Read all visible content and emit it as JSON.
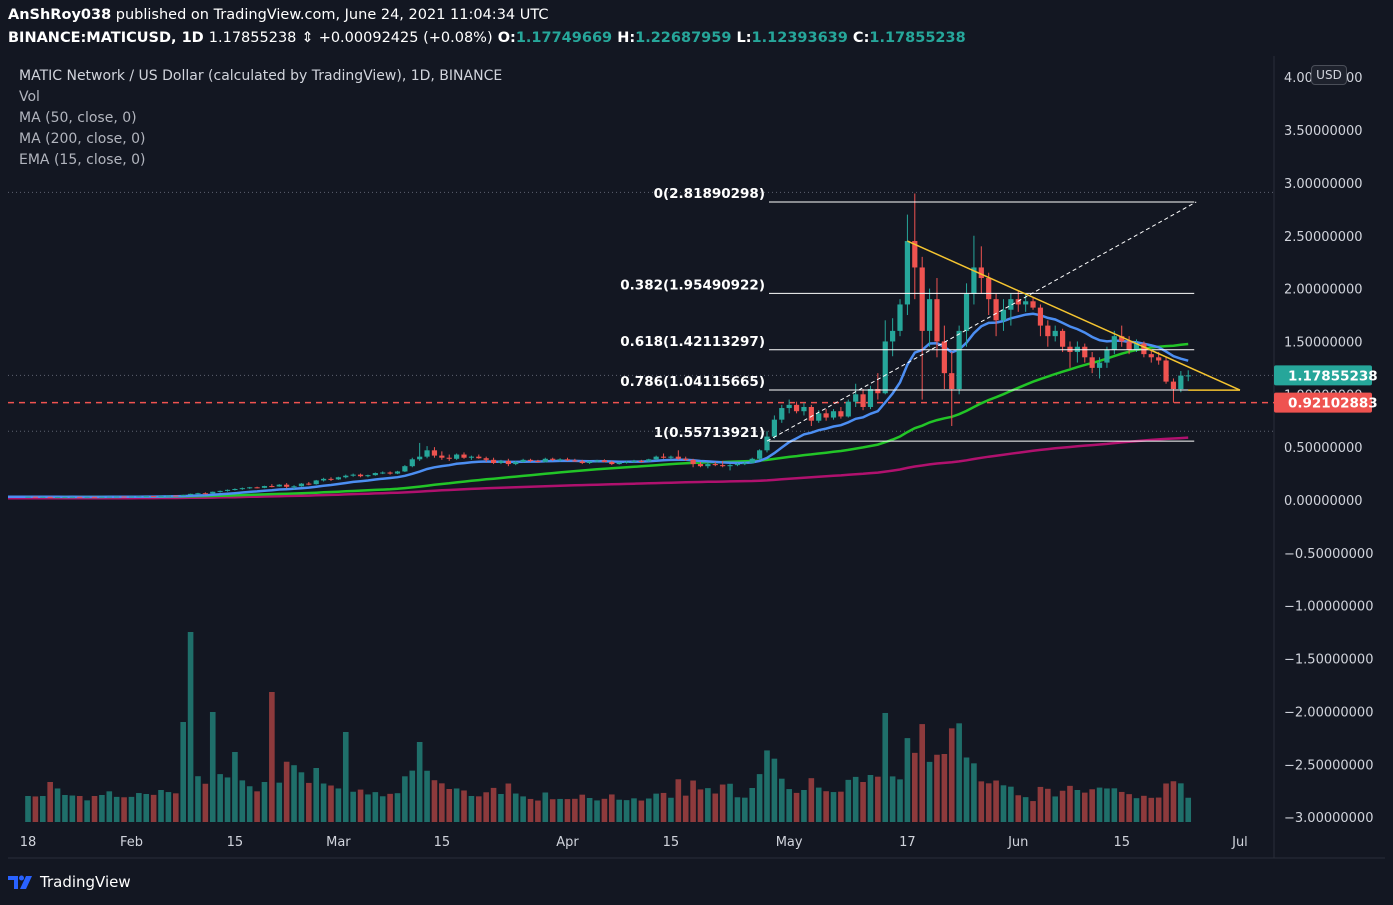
{
  "header": {
    "publisher": "AnShRoy038",
    "published_text": "published on TradingView.com, June 24, 2021 11:04:34 UTC",
    "symbol": "BINANCE:MATICUSD,",
    "interval": "1D",
    "last": "1.17855238",
    "change": "+0.00092425 (+0.08%)",
    "open_label": "O:",
    "open": "1.17749669",
    "high_label": "H:",
    "high": "1.22687959",
    "low_label": "L:",
    "low": "1.12393639",
    "close_label": "C:",
    "close": "1.17855238"
  },
  "legend": {
    "title": "MATIC Network / US Dollar (calculated by TradingView), 1D, BINANCE",
    "vol": "Vol",
    "ma50": "MA (50, close, 0)",
    "ma200": "MA (200, close, 0)",
    "ema15": "EMA (15, close, 0)"
  },
  "currency_badge": "USD",
  "footer": {
    "brand": "TradingView"
  },
  "colors": {
    "background": "#131722",
    "up": "#26a69a",
    "down": "#ef5350",
    "ema15": "#2962ff",
    "ma50": "#22c527",
    "ma200": "#b0116e",
    "trendline": "#f4c430",
    "fib": "#ffffff",
    "support": "#ef5350",
    "price_label": "#26a69a"
  },
  "chart_data": {
    "type": "candlestick",
    "y_ticks": [
      "4.00000000",
      "3.50000000",
      "3.00000000",
      "2.50000000",
      "2.00000000",
      "1.50000000",
      "1.00000000",
      "0.50000000",
      "0.00000000",
      "−0.50000000",
      "−1.00000000",
      "−1.50000000",
      "−2.00000000",
      "−2.50000000",
      "−3.00000000"
    ],
    "ylim": [
      -3.0,
      4.0
    ],
    "x_ticks": [
      {
        "label": "18",
        "date": "2021-01-18"
      },
      {
        "label": "Feb",
        "date": "2021-02-01"
      },
      {
        "label": "15",
        "date": "2021-02-15"
      },
      {
        "label": "Mar",
        "date": "2021-03-01"
      },
      {
        "label": "15",
        "date": "2021-03-15"
      },
      {
        "label": "Apr",
        "date": "2021-04-01"
      },
      {
        "label": "15",
        "date": "2021-04-15"
      },
      {
        "label": "May",
        "date": "2021-05-01"
      },
      {
        "label": "17",
        "date": "2021-05-17"
      },
      {
        "label": "Jun",
        "date": "2021-06-01"
      },
      {
        "label": "15",
        "date": "2021-06-15"
      },
      {
        "label": "Jul",
        "date": "2021-07-01"
      }
    ],
    "fib_levels": [
      {
        "label": "0(2.81890298)",
        "value": 2.81890298
      },
      {
        "label": "0.382(1.95490922)",
        "value": 1.95490922
      },
      {
        "label": "0.618(1.42113297)",
        "value": 1.42113297
      },
      {
        "label": "0.786(1.04115665)",
        "value": 1.04115665
      },
      {
        "label": "1(0.55713921)",
        "value": 0.55713921
      }
    ],
    "current_price": {
      "label": "1.17855238",
      "value": 1.17855238
    },
    "support_level": {
      "label": "0.92102883",
      "value": 0.92102883
    },
    "ohlc": [
      [
        "2021-01-18",
        0.03,
        0.032,
        0.029,
        0.031
      ],
      [
        "2021-01-19",
        0.031,
        0.032,
        0.029,
        0.03
      ],
      [
        "2021-01-20",
        0.03,
        0.031,
        0.028,
        0.03
      ],
      [
        "2021-01-21",
        0.03,
        0.031,
        0.025,
        0.026
      ],
      [
        "2021-01-22",
        0.026,
        0.029,
        0.025,
        0.028
      ],
      [
        "2021-01-23",
        0.028,
        0.03,
        0.027,
        0.029
      ],
      [
        "2021-01-24",
        0.029,
        0.031,
        0.028,
        0.03
      ],
      [
        "2021-01-25",
        0.03,
        0.031,
        0.028,
        0.029
      ],
      [
        "2021-01-26",
        0.029,
        0.03,
        0.028,
        0.03
      ],
      [
        "2021-01-27",
        0.03,
        0.03,
        0.027,
        0.028
      ],
      [
        "2021-01-28",
        0.028,
        0.031,
        0.028,
        0.03
      ],
      [
        "2021-01-29",
        0.03,
        0.033,
        0.029,
        0.032
      ],
      [
        "2021-01-30",
        0.032,
        0.034,
        0.031,
        0.033
      ],
      [
        "2021-01-31",
        0.033,
        0.034,
        0.031,
        0.032
      ],
      [
        "2021-02-01",
        0.032,
        0.034,
        0.031,
        0.033
      ],
      [
        "2021-02-02",
        0.033,
        0.036,
        0.032,
        0.035
      ],
      [
        "2021-02-03",
        0.035,
        0.038,
        0.034,
        0.037
      ],
      [
        "2021-02-04",
        0.037,
        0.038,
        0.034,
        0.035
      ],
      [
        "2021-02-05",
        0.035,
        0.04,
        0.035,
        0.039
      ],
      [
        "2021-02-06",
        0.039,
        0.043,
        0.038,
        0.042
      ],
      [
        "2021-02-07",
        0.042,
        0.043,
        0.038,
        0.04
      ],
      [
        "2021-02-08",
        0.04,
        0.05,
        0.039,
        0.048
      ],
      [
        "2021-02-09",
        0.048,
        0.06,
        0.046,
        0.058
      ],
      [
        "2021-02-10",
        0.058,
        0.068,
        0.054,
        0.064
      ],
      [
        "2021-02-11",
        0.064,
        0.072,
        0.06,
        0.062
      ],
      [
        "2021-02-12",
        0.062,
        0.08,
        0.06,
        0.078
      ],
      [
        "2021-02-13",
        0.078,
        0.09,
        0.07,
        0.086
      ],
      [
        "2021-02-14",
        0.086,
        0.1,
        0.08,
        0.096
      ],
      [
        "2021-02-15",
        0.096,
        0.11,
        0.09,
        0.104
      ],
      [
        "2021-02-16",
        0.104,
        0.118,
        0.096,
        0.112
      ],
      [
        "2021-02-17",
        0.112,
        0.124,
        0.105,
        0.12
      ],
      [
        "2021-02-18",
        0.12,
        0.126,
        0.11,
        0.115
      ],
      [
        "2021-02-19",
        0.115,
        0.135,
        0.112,
        0.132
      ],
      [
        "2021-02-20",
        0.132,
        0.15,
        0.12,
        0.128
      ],
      [
        "2021-02-21",
        0.128,
        0.15,
        0.125,
        0.145
      ],
      [
        "2021-02-22",
        0.145,
        0.16,
        0.11,
        0.125
      ],
      [
        "2021-02-23",
        0.125,
        0.14,
        0.1,
        0.13
      ],
      [
        "2021-02-24",
        0.13,
        0.16,
        0.125,
        0.155
      ],
      [
        "2021-02-25",
        0.155,
        0.17,
        0.14,
        0.15
      ],
      [
        "2021-02-26",
        0.15,
        0.19,
        0.145,
        0.185
      ],
      [
        "2021-02-27",
        0.185,
        0.21,
        0.175,
        0.2
      ],
      [
        "2021-02-28",
        0.2,
        0.215,
        0.18,
        0.195
      ],
      [
        "2021-03-01",
        0.195,
        0.22,
        0.19,
        0.215
      ],
      [
        "2021-03-02",
        0.215,
        0.24,
        0.205,
        0.23
      ],
      [
        "2021-03-03",
        0.23,
        0.25,
        0.22,
        0.24
      ],
      [
        "2021-03-04",
        0.24,
        0.25,
        0.215,
        0.225
      ],
      [
        "2021-03-05",
        0.225,
        0.24,
        0.215,
        0.235
      ],
      [
        "2021-03-06",
        0.235,
        0.26,
        0.23,
        0.255
      ],
      [
        "2021-03-07",
        0.255,
        0.27,
        0.245,
        0.26
      ],
      [
        "2021-03-08",
        0.26,
        0.27,
        0.24,
        0.25
      ],
      [
        "2021-03-09",
        0.25,
        0.275,
        0.245,
        0.27
      ],
      [
        "2021-03-10",
        0.27,
        0.33,
        0.265,
        0.32
      ],
      [
        "2021-03-11",
        0.32,
        0.4,
        0.31,
        0.385
      ],
      [
        "2021-03-12",
        0.385,
        0.54,
        0.37,
        0.41
      ],
      [
        "2021-03-13",
        0.41,
        0.51,
        0.395,
        0.47
      ],
      [
        "2021-03-14",
        0.47,
        0.5,
        0.4,
        0.42
      ],
      [
        "2021-03-15",
        0.42,
        0.46,
        0.38,
        0.4
      ],
      [
        "2021-03-16",
        0.4,
        0.43,
        0.37,
        0.39
      ],
      [
        "2021-03-17",
        0.39,
        0.44,
        0.38,
        0.43
      ],
      [
        "2021-03-18",
        0.43,
        0.45,
        0.39,
        0.4
      ],
      [
        "2021-03-19",
        0.4,
        0.42,
        0.38,
        0.41
      ],
      [
        "2021-03-20",
        0.41,
        0.43,
        0.39,
        0.395
      ],
      [
        "2021-03-21",
        0.395,
        0.41,
        0.36,
        0.38
      ],
      [
        "2021-03-22",
        0.38,
        0.4,
        0.34,
        0.35
      ],
      [
        "2021-03-23",
        0.35,
        0.38,
        0.34,
        0.37
      ],
      [
        "2021-03-24",
        0.37,
        0.39,
        0.32,
        0.34
      ],
      [
        "2021-03-25",
        0.34,
        0.37,
        0.33,
        0.36
      ],
      [
        "2021-03-26",
        0.36,
        0.39,
        0.355,
        0.38
      ],
      [
        "2021-03-27",
        0.38,
        0.39,
        0.36,
        0.37
      ],
      [
        "2021-03-28",
        0.37,
        0.38,
        0.355,
        0.36
      ],
      [
        "2021-03-29",
        0.36,
        0.4,
        0.355,
        0.39
      ],
      [
        "2021-03-30",
        0.39,
        0.4,
        0.37,
        0.38
      ],
      [
        "2021-03-31",
        0.38,
        0.395,
        0.365,
        0.385
      ],
      [
        "2021-04-01",
        0.385,
        0.4,
        0.37,
        0.375
      ],
      [
        "2021-04-02",
        0.375,
        0.39,
        0.36,
        0.365
      ],
      [
        "2021-04-03",
        0.365,
        0.38,
        0.34,
        0.35
      ],
      [
        "2021-04-04",
        0.35,
        0.37,
        0.34,
        0.365
      ],
      [
        "2021-04-05",
        0.365,
        0.38,
        0.355,
        0.375
      ],
      [
        "2021-04-06",
        0.375,
        0.385,
        0.355,
        0.36
      ],
      [
        "2021-04-07",
        0.36,
        0.37,
        0.33,
        0.34
      ],
      [
        "2021-04-08",
        0.34,
        0.36,
        0.335,
        0.355
      ],
      [
        "2021-04-09",
        0.355,
        0.37,
        0.345,
        0.36
      ],
      [
        "2021-04-10",
        0.36,
        0.38,
        0.35,
        0.37
      ],
      [
        "2021-04-11",
        0.37,
        0.38,
        0.355,
        0.365
      ],
      [
        "2021-04-12",
        0.365,
        0.39,
        0.36,
        0.385
      ],
      [
        "2021-04-13",
        0.385,
        0.42,
        0.375,
        0.41
      ],
      [
        "2021-04-14",
        0.41,
        0.44,
        0.39,
        0.4
      ],
      [
        "2021-04-15",
        0.4,
        0.42,
        0.385,
        0.41
      ],
      [
        "2021-04-16",
        0.41,
        0.47,
        0.38,
        0.39
      ],
      [
        "2021-04-17",
        0.39,
        0.41,
        0.37,
        0.38
      ],
      [
        "2021-04-18",
        0.38,
        0.39,
        0.31,
        0.34
      ],
      [
        "2021-04-19",
        0.34,
        0.36,
        0.31,
        0.32
      ],
      [
        "2021-04-20",
        0.32,
        0.35,
        0.3,
        0.34
      ],
      [
        "2021-04-21",
        0.34,
        0.36,
        0.32,
        0.33
      ],
      [
        "2021-04-22",
        0.33,
        0.37,
        0.31,
        0.32
      ],
      [
        "2021-04-23",
        0.32,
        0.34,
        0.28,
        0.33
      ],
      [
        "2021-04-24",
        0.33,
        0.35,
        0.32,
        0.34
      ],
      [
        "2021-04-25",
        0.34,
        0.36,
        0.33,
        0.35
      ],
      [
        "2021-04-26",
        0.35,
        0.4,
        0.345,
        0.39
      ],
      [
        "2021-04-27",
        0.39,
        0.48,
        0.38,
        0.47
      ],
      [
        "2021-04-28",
        0.47,
        0.65,
        0.45,
        0.6
      ],
      [
        "2021-04-29",
        0.6,
        0.8,
        0.58,
        0.76
      ],
      [
        "2021-04-30",
        0.76,
        0.9,
        0.73,
        0.87
      ],
      [
        "2021-05-01",
        0.87,
        0.95,
        0.82,
        0.9
      ],
      [
        "2021-05-02",
        0.9,
        0.93,
        0.82,
        0.84
      ],
      [
        "2021-05-03",
        0.84,
        0.92,
        0.8,
        0.88
      ],
      [
        "2021-05-04",
        0.88,
        0.9,
        0.7,
        0.75
      ],
      [
        "2021-05-05",
        0.75,
        0.85,
        0.73,
        0.82
      ],
      [
        "2021-05-06",
        0.82,
        0.86,
        0.75,
        0.78
      ],
      [
        "2021-05-07",
        0.78,
        0.86,
        0.76,
        0.84
      ],
      [
        "2021-05-08",
        0.84,
        0.88,
        0.77,
        0.79
      ],
      [
        "2021-05-09",
        0.79,
        0.95,
        0.78,
        0.93
      ],
      [
        "2021-05-10",
        0.93,
        1.1,
        0.88,
        1.0
      ],
      [
        "2021-05-11",
        1.0,
        1.05,
        0.85,
        0.88
      ],
      [
        "2021-05-12",
        0.88,
        1.08,
        0.86,
        1.05
      ],
      [
        "2021-05-13",
        1.05,
        1.2,
        0.95,
        1.01
      ],
      [
        "2021-05-14",
        1.01,
        1.7,
        1.0,
        1.5
      ],
      [
        "2021-05-15",
        1.5,
        1.72,
        1.36,
        1.6
      ],
      [
        "2021-05-16",
        1.6,
        1.9,
        1.55,
        1.85
      ],
      [
        "2021-05-17",
        1.85,
        2.7,
        1.75,
        2.45
      ],
      [
        "2021-05-18",
        2.45,
        2.9,
        1.9,
        2.2
      ],
      [
        "2021-05-19",
        2.2,
        2.3,
        0.95,
        1.6
      ],
      [
        "2021-05-20",
        1.6,
        2.0,
        1.45,
        1.9
      ],
      [
        "2021-05-21",
        1.9,
        2.1,
        1.35,
        1.5
      ],
      [
        "2021-05-22",
        1.5,
        1.65,
        1.05,
        1.2
      ],
      [
        "2021-05-23",
        1.2,
        1.4,
        0.7,
        1.05
      ],
      [
        "2021-05-24",
        1.05,
        1.65,
        1.0,
        1.6
      ],
      [
        "2021-05-25",
        1.6,
        2.05,
        1.45,
        1.95
      ],
      [
        "2021-05-26",
        1.95,
        2.5,
        1.85,
        2.2
      ],
      [
        "2021-05-27",
        2.2,
        2.4,
        1.95,
        2.1
      ],
      [
        "2021-05-28",
        2.1,
        2.15,
        1.75,
        1.9
      ],
      [
        "2021-05-29",
        1.9,
        1.95,
        1.55,
        1.7
      ],
      [
        "2021-05-30",
        1.7,
        1.9,
        1.6,
        1.8
      ],
      [
        "2021-05-31",
        1.8,
        1.95,
        1.65,
        1.9
      ],
      [
        "2021-06-01",
        1.9,
        1.98,
        1.78,
        1.85
      ],
      [
        "2021-06-02",
        1.85,
        1.95,
        1.78,
        1.88
      ],
      [
        "2021-06-03",
        1.88,
        1.92,
        1.8,
        1.82
      ],
      [
        "2021-06-04",
        1.82,
        1.85,
        1.55,
        1.65
      ],
      [
        "2021-06-05",
        1.65,
        1.7,
        1.45,
        1.55
      ],
      [
        "2021-06-06",
        1.55,
        1.65,
        1.5,
        1.6
      ],
      [
        "2021-06-07",
        1.6,
        1.62,
        1.4,
        1.45
      ],
      [
        "2021-06-08",
        1.45,
        1.5,
        1.25,
        1.4
      ],
      [
        "2021-06-09",
        1.4,
        1.5,
        1.3,
        1.45
      ],
      [
        "2021-06-10",
        1.45,
        1.48,
        1.3,
        1.35
      ],
      [
        "2021-06-11",
        1.35,
        1.4,
        1.2,
        1.25
      ],
      [
        "2021-06-12",
        1.25,
        1.35,
        1.15,
        1.3
      ],
      [
        "2021-06-13",
        1.3,
        1.45,
        1.25,
        1.42
      ],
      [
        "2021-06-14",
        1.42,
        1.6,
        1.38,
        1.55
      ],
      [
        "2021-06-15",
        1.55,
        1.65,
        1.45,
        1.5
      ],
      [
        "2021-06-16",
        1.5,
        1.55,
        1.38,
        1.42
      ],
      [
        "2021-06-17",
        1.42,
        1.52,
        1.4,
        1.48
      ],
      [
        "2021-06-18",
        1.48,
        1.5,
        1.35,
        1.38
      ],
      [
        "2021-06-19",
        1.38,
        1.42,
        1.3,
        1.35
      ],
      [
        "2021-06-20",
        1.35,
        1.4,
        1.28,
        1.32
      ],
      [
        "2021-06-21",
        1.32,
        1.35,
        1.1,
        1.12
      ],
      [
        "2021-06-22",
        1.12,
        1.15,
        0.92,
        1.05
      ],
      [
        "2021-06-23",
        1.05,
        1.22,
        1.02,
        1.177
      ],
      [
        "2021-06-24",
        1.177,
        1.227,
        1.124,
        1.179
      ]
    ]
  }
}
